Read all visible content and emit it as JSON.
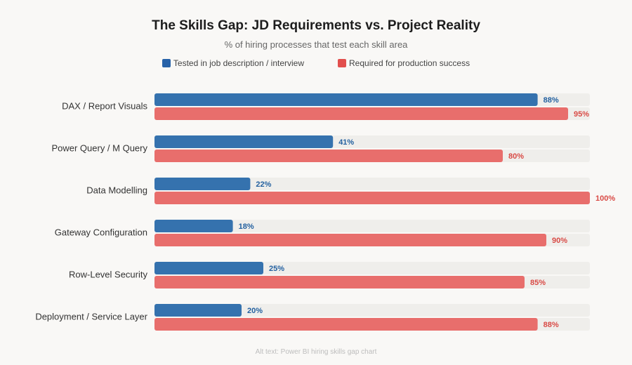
{
  "chart_data": {
    "type": "bar",
    "orientation": "horizontal",
    "title": "The Skills Gap: JD Requirements vs. Project Reality",
    "subtitle": "% of hiring processes that test each skill area",
    "categories": [
      "DAX / Report Visuals",
      "Power Query / M Query",
      "Data Modelling",
      "Gateway Configuration",
      "Row-Level Security",
      "Deployment / Service Layer"
    ],
    "series": [
      {
        "name": "Tested in job description / interview",
        "color": "#3572ae",
        "label_color": "#2461a0",
        "values": [
          88,
          41,
          22,
          18,
          25,
          20
        ]
      },
      {
        "name": "Required for production success",
        "color": "#e86e6c",
        "label_color": "#d94a45",
        "values": [
          95,
          80,
          100,
          90,
          85,
          88
        ]
      }
    ],
    "value_suffix": "%",
    "xlim": [
      0,
      100
    ],
    "legend": "top-center",
    "grid": false,
    "track_color": "#efeeeb"
  },
  "legend_colors": {
    "tested": "#2762a8",
    "required": "#e24f4d"
  },
  "footnote": "Alt text: Power BI hiring skills gap chart"
}
